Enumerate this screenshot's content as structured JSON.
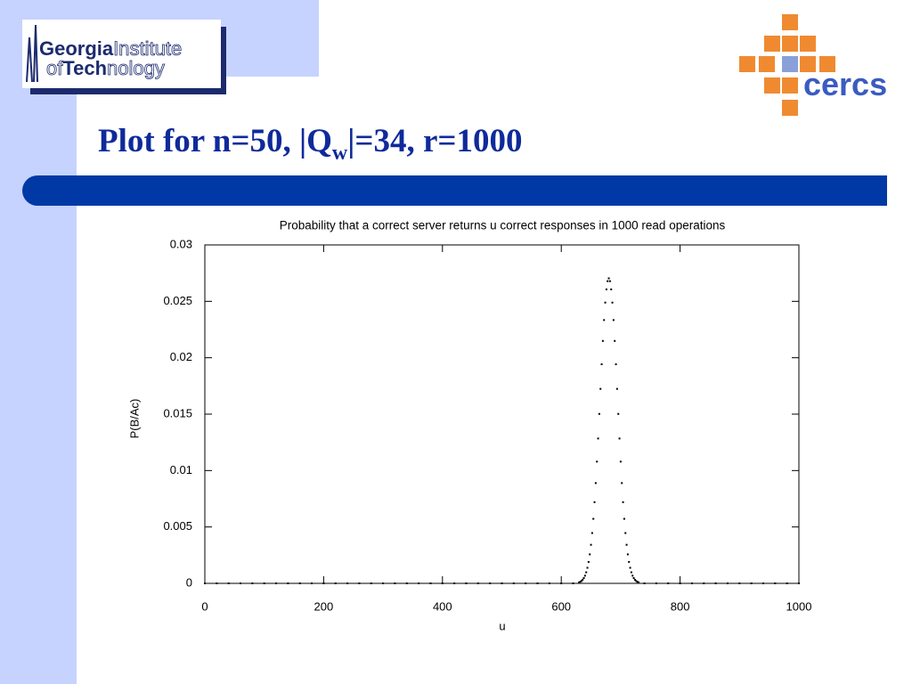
{
  "header": {
    "logo_left": {
      "line1_bold": "Georgia",
      "line1_light": "Institute",
      "line2_light_a": "of",
      "line2_bold": "Tech",
      "line2_light_b": "nology"
    },
    "logo_right": {
      "text": "cercs"
    }
  },
  "title": {
    "before": "Plot for n=50, |Q",
    "subscript": "w",
    "after": "|=34, r=1000"
  },
  "chart_data": {
    "type": "scatter",
    "title": "Probability that a correct server returns u correct responses in 1000 read operations",
    "x_label": "u",
    "y_label": "P(B/Ac)",
    "color": "#000000",
    "xlim": [
      0,
      1000
    ],
    "ylim": [
      0,
      0.03
    ],
    "xticks": [
      0,
      200,
      400,
      600,
      800,
      1000
    ],
    "yticks": [
      0,
      0.005,
      0.01,
      0.015,
      0.02,
      0.025,
      0.03
    ],
    "x": [
      0,
      20,
      40,
      60,
      80,
      100,
      120,
      140,
      160,
      180,
      200,
      220,
      240,
      260,
      280,
      300,
      320,
      340,
      360,
      380,
      400,
      420,
      440,
      460,
      480,
      500,
      520,
      540,
      560,
      580,
      600,
      620,
      630,
      632,
      634,
      636,
      638,
      640,
      642,
      644,
      646,
      648,
      650,
      652,
      654,
      656,
      658,
      660,
      662,
      664,
      666,
      668,
      670,
      672,
      674,
      676,
      678,
      680,
      682,
      684,
      686,
      688,
      690,
      692,
      694,
      696,
      698,
      700,
      702,
      704,
      706,
      708,
      710,
      712,
      714,
      716,
      718,
      720,
      722,
      724,
      726,
      728,
      730,
      740,
      760,
      780,
      800,
      820,
      840,
      860,
      880,
      900,
      920,
      940,
      960,
      980,
      1000
    ],
    "values": [
      0,
      0,
      0,
      0,
      0,
      0,
      0,
      0,
      0,
      0,
      0,
      0,
      0,
      0,
      0,
      0,
      0,
      0,
      0,
      0,
      0,
      0,
      0,
      0,
      0,
      0,
      0,
      0,
      0,
      0,
      0,
      0,
      9e-05,
      0.00014,
      0.00021,
      0.00032,
      0.00047,
      0.00068,
      0.00098,
      0.00138,
      0.0019,
      0.00257,
      0.00342,
      0.00446,
      0.00572,
      0.0072,
      0.00889,
      0.01079,
      0.01284,
      0.01502,
      0.01724,
      0.01942,
      0.02149,
      0.02334,
      0.02489,
      0.02606,
      0.02679,
      0.02704,
      0.02679,
      0.02606,
      0.02489,
      0.02334,
      0.02149,
      0.01942,
      0.01724,
      0.01502,
      0.01284,
      0.01079,
      0.00889,
      0.0072,
      0.00572,
      0.00446,
      0.00342,
      0.00257,
      0.0019,
      0.00138,
      0.00098,
      0.00068,
      0.00047,
      0.00032,
      0.00021,
      0.00014,
      9e-05,
      0,
      0,
      0,
      0,
      0,
      0,
      0,
      0,
      0,
      0,
      0,
      0,
      0,
      0
    ]
  }
}
